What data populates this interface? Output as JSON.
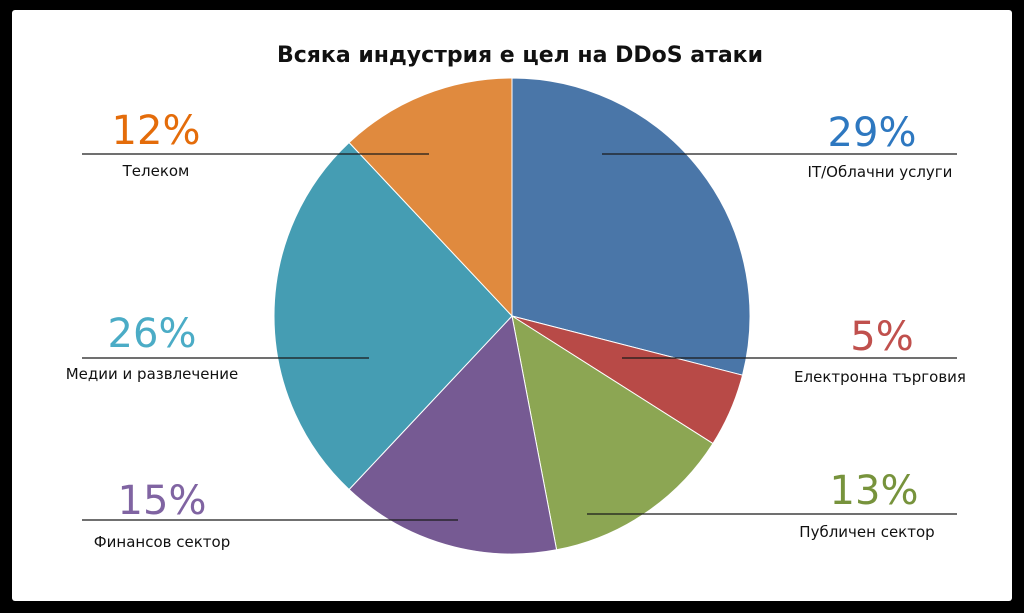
{
  "chart_data": {
    "type": "pie",
    "title": "Всяка индустрия е цел на DDoS атаки",
    "categories": [
      "IT/Облачни услуги",
      "Електронна търговия",
      "Публичен сектор",
      "Финансов сектор",
      "Медии и развлечение",
      "Телеком"
    ],
    "values": [
      29,
      5,
      13,
      15,
      26,
      12
    ],
    "labels": [
      "29%",
      "5%",
      "13%",
      "15%",
      "26%",
      "12%"
    ],
    "colors": [
      "#4a76a8",
      "#b84a47",
      "#8ca653",
      "#765a93",
      "#459db3",
      "#e08a3e"
    ],
    "label_colors": [
      "#2e78c0",
      "#c0504d",
      "#77933c",
      "#8064a2",
      "#4bacc6",
      "#e46c0a"
    ],
    "legend": "none"
  }
}
